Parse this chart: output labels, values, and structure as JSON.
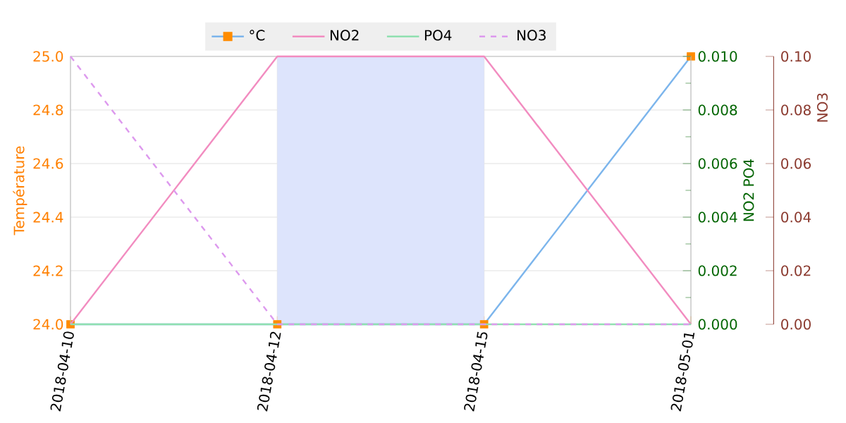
{
  "chart_data": {
    "type": "line",
    "categories": [
      "2018-04-10",
      "2018-04-12",
      "2018-04-15",
      "2018-05-01"
    ],
    "ylabel": "Température",
    "y2label": "NO2 PO4",
    "y3label": "NO3",
    "ylim": [
      24,
      25
    ],
    "yticks": [
      {
        "value": 24,
        "label": "24.0"
      },
      {
        "value": 24.2,
        "label": "24.2"
      },
      {
        "value": 24.4,
        "label": "24.4"
      },
      {
        "value": 24.6,
        "label": "24.6"
      },
      {
        "value": 24.8,
        "label": "24.8"
      },
      {
        "value": 25,
        "label": "25.0"
      }
    ],
    "y2lim": [
      0,
      0.01
    ],
    "y2ticks": [
      {
        "value": 0,
        "label": "0.000"
      },
      {
        "value": 0.002,
        "label": "0.002"
      },
      {
        "value": 0.004,
        "label": "0.004"
      },
      {
        "value": 0.006,
        "label": "0.006"
      },
      {
        "value": 0.008,
        "label": "0.008"
      },
      {
        "value": 0.01,
        "label": "0.010"
      }
    ],
    "y3lim": [
      0,
      0.1
    ],
    "y3ticks": [
      {
        "value": 0,
        "label": "0.00"
      },
      {
        "value": 0.02,
        "label": "0.02"
      },
      {
        "value": 0.04,
        "label": "0.04"
      },
      {
        "value": 0.06,
        "label": "0.06"
      },
      {
        "value": 0.08,
        "label": "0.08"
      },
      {
        "value": 0.1,
        "label": "0.10"
      }
    ],
    "series": [
      {
        "name": "°C",
        "color": "#7cb5ec",
        "colors": [
          "#ff8c00",
          "#ff8c00",
          "#ff8c00",
          "#ff8c00"
        ],
        "marker": "square",
        "values": [
          24,
          24,
          24,
          25
        ]
      },
      {
        "name": "NO2",
        "color": "#f28cc0",
        "axis": "y2",
        "marker": "none",
        "values": [
          0,
          0.01,
          0.01,
          0
        ]
      },
      {
        "name": "PO4",
        "color": "#90e0b0",
        "axis": "y2",
        "marker": "none",
        "values": [
          0,
          0,
          0,
          0
        ]
      },
      {
        "name": "NO3",
        "color": "#dd99ee",
        "axis": "y3",
        "marker": "none",
        "line_style": "dashed",
        "values": [
          0.1,
          0,
          0,
          0
        ]
      }
    ],
    "bands": [
      {
        "axis": "x",
        "from": "2018-04-12",
        "to": "2018-04-15",
        "color": "#dde4fc"
      }
    ],
    "grid": true,
    "legend": "top"
  }
}
